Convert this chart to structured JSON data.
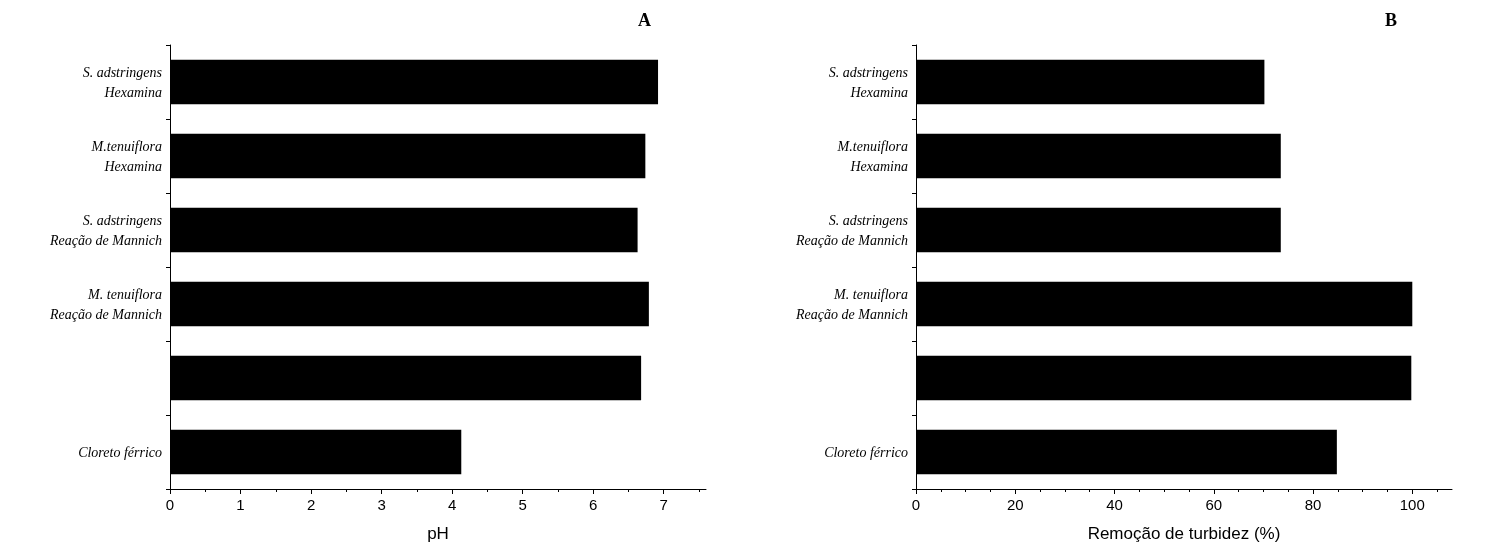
{
  "chart_data": [
    {
      "type": "bar",
      "orientation": "horizontal",
      "title": "A",
      "xlabel": "pH",
      "categories": [
        "S. adstringens\nHexamina",
        "M.tenuiflora\nHexamina",
        "S. adstringens\nReação de Mannich",
        "M. tenuiflora\nReação de Mannich",
        null,
        "Cloreto férrico"
      ],
      "values": [
        6.92,
        6.74,
        6.63,
        6.79,
        6.68,
        4.13
      ],
      "color": "#000000",
      "xlim": [
        0,
        7.6
      ],
      "xticks": [
        0,
        1,
        2,
        3,
        4,
        5,
        6,
        7
      ],
      "grid": false
    },
    {
      "type": "bar",
      "orientation": "horizontal",
      "title": "B",
      "xlabel": "Remoção de turbidez (%)",
      "categories": [
        "S. adstringens\nHexamina",
        "M.tenuiflora\nHexamina",
        "S. adstringens\nReação de Mannich",
        "M. tenuiflora\nReação de Mannich",
        null,
        "Cloreto férrico"
      ],
      "values": [
        70.2,
        73.5,
        73.5,
        100,
        99.8,
        84.8
      ],
      "color": "#000000",
      "xlim": [
        0,
        108
      ],
      "xticks": [
        0,
        20,
        40,
        60,
        80,
        100
      ],
      "grid": false
    }
  ]
}
